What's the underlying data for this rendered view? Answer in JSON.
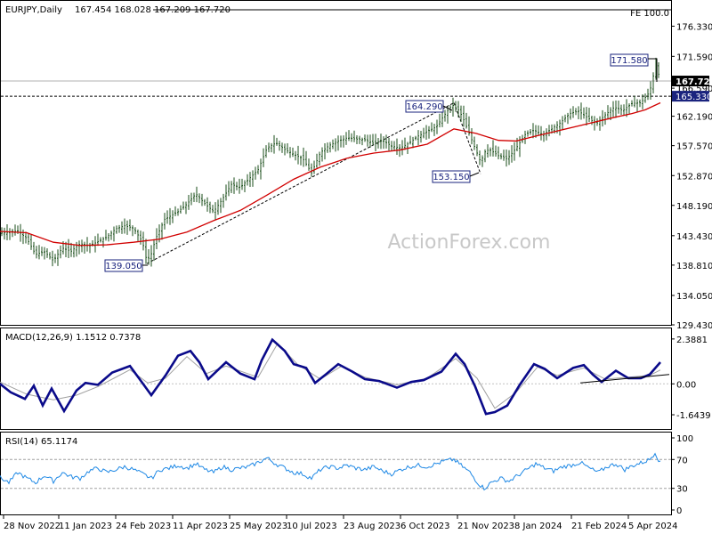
{
  "chart_data": [
    {
      "type": "candlestick",
      "title": "EURJPY,Daily",
      "ohlc": "167.454 168.028 167.209 167.720",
      "ylim": [
        129.43,
        180.3
      ],
      "y_ticks": [
        "176.330",
        "171.590",
        "167.720",
        "166.590",
        "165.330",
        "162.190",
        "157.570",
        "152.870",
        "148.190",
        "143.430",
        "138.810",
        "134.050",
        "129.430"
      ],
      "last_price": 167.72,
      "last_price_label": "167.720",
      "hline_label": "165.330",
      "hline_value": 165.33,
      "fe_label": "FE 100.0",
      "fe_value": 178.9,
      "annotations": [
        {
          "text": "171.580",
          "value": 171.58
        },
        {
          "text": "164.290",
          "value": 164.29
        },
        {
          "text": "153.150",
          "value": 153.15
        },
        {
          "text": "139.050",
          "value": 139.05
        }
      ],
      "x_labels": [
        "28 Nov 2022",
        "11 Jan 2023",
        "24 Feb 2023",
        "11 Apr 2023",
        "25 May 2023",
        "10 Jul 2023",
        "23 Aug 2023",
        "6 Oct 2023",
        "21 Nov 2023",
        "8 Jan 2024",
        "21 Feb 2024",
        "5 Apr 2024"
      ],
      "watermark": "ActionForex.com",
      "close_path": [
        [
          0,
          143.8
        ],
        [
          20,
          144.2
        ],
        [
          30,
          143.0
        ],
        [
          40,
          140.5
        ],
        [
          50,
          140.9
        ],
        [
          60,
          139.5
        ],
        [
          70,
          141.5
        ],
        [
          80,
          141.0
        ],
        [
          90,
          142.2
        ],
        [
          100,
          141.8
        ],
        [
          110,
          142.5
        ],
        [
          120,
          143.2
        ],
        [
          130,
          144.5
        ],
        [
          140,
          145.0
        ],
        [
          150,
          144.6
        ],
        [
          160,
          142.5
        ],
        [
          165,
          139.4
        ],
        [
          170,
          140.6
        ],
        [
          175,
          143.0
        ],
        [
          185,
          146.0
        ],
        [
          200,
          147.2
        ],
        [
          210,
          148.4
        ],
        [
          220,
          150.0
        ],
        [
          230,
          148.5
        ],
        [
          240,
          147.2
        ],
        [
          250,
          149.2
        ],
        [
          260,
          151.5
        ],
        [
          270,
          151.0
        ],
        [
          280,
          152.4
        ],
        [
          290,
          153.8
        ],
        [
          300,
          157.2
        ],
        [
          310,
          158.0
        ],
        [
          320,
          157.0
        ],
        [
          330,
          156.2
        ],
        [
          340,
          155.6
        ],
        [
          350,
          153.3
        ],
        [
          360,
          156.5
        ],
        [
          370,
          157.6
        ],
        [
          380,
          158.3
        ],
        [
          390,
          158.8
        ],
        [
          400,
          158.6
        ],
        [
          410,
          158.5
        ],
        [
          420,
          157.9
        ],
        [
          430,
          158.4
        ],
        [
          440,
          157.5
        ],
        [
          450,
          157.2
        ],
        [
          460,
          158.0
        ],
        [
          470,
          159.1
        ],
        [
          480,
          159.8
        ],
        [
          490,
          160.5
        ],
        [
          500,
          162.5
        ],
        [
          508,
          164.0
        ],
        [
          515,
          163.2
        ],
        [
          520,
          162.0
        ],
        [
          530,
          158.5
        ],
        [
          540,
          155.0
        ],
        [
          545,
          156.6
        ],
        [
          550,
          157.0
        ],
        [
          560,
          156.0
        ],
        [
          570,
          155.5
        ],
        [
          580,
          157.2
        ],
        [
          590,
          159.3
        ],
        [
          600,
          160.0
        ],
        [
          610,
          159.3
        ],
        [
          620,
          160.2
        ],
        [
          630,
          161.2
        ],
        [
          640,
          162.6
        ],
        [
          650,
          163.0
        ],
        [
          660,
          162.0
        ],
        [
          670,
          161.0
        ],
        [
          680,
          162.4
        ],
        [
          690,
          163.6
        ],
        [
          700,
          163.1
        ],
        [
          710,
          164.2
        ],
        [
          720,
          164.3
        ],
        [
          730,
          166.0
        ],
        [
          737,
          170.4
        ],
        [
          742,
          167.7
        ]
      ],
      "ma_path": [
        [
          0,
          144.1
        ],
        [
          30,
          143.9
        ],
        [
          60,
          142.4
        ],
        [
          90,
          141.9
        ],
        [
          120,
          142.0
        ],
        [
          150,
          142.4
        ],
        [
          180,
          142.9
        ],
        [
          210,
          144.0
        ],
        [
          240,
          145.8
        ],
        [
          270,
          147.4
        ],
        [
          300,
          149.8
        ],
        [
          330,
          152.3
        ],
        [
          360,
          154.2
        ],
        [
          390,
          155.6
        ],
        [
          420,
          156.4
        ],
        [
          450,
          156.9
        ],
        [
          480,
          157.8
        ],
        [
          510,
          160.2
        ],
        [
          535,
          159.5
        ],
        [
          560,
          158.4
        ],
        [
          580,
          158.3
        ],
        [
          600,
          159.0
        ],
        [
          630,
          160.0
        ],
        [
          660,
          161.0
        ],
        [
          690,
          162.0
        ],
        [
          710,
          162.6
        ],
        [
          725,
          163.2
        ],
        [
          742,
          164.3
        ]
      ],
      "trendlines": [
        {
          "from": [
            165,
            139.05
          ],
          "to": [
            510,
            164.29
          ],
          "style": "dashed"
        },
        {
          "from": [
            510,
            164.29
          ],
          "to": [
            540,
            153.15
          ],
          "style": "dashed"
        }
      ]
    },
    {
      "type": "line",
      "title": "MACD(12,26,9) 1.1512 0.7378",
      "ylim": [
        -2.4,
        2.95
      ],
      "y_ticks": [
        "2.3881",
        "0.00",
        "-1.6439"
      ],
      "zero_label": "0.00",
      "macd_path": [
        [
          0,
          0.0
        ],
        [
          12,
          -0.45
        ],
        [
          28,
          -0.8
        ],
        [
          38,
          -0.1
        ],
        [
          48,
          -1.15
        ],
        [
          58,
          -0.25
        ],
        [
          72,
          -1.45
        ],
        [
          86,
          -0.35
        ],
        [
          96,
          0.05
        ],
        [
          110,
          -0.05
        ],
        [
          126,
          0.6
        ],
        [
          146,
          0.95
        ],
        [
          160,
          0.05
        ],
        [
          170,
          -0.6
        ],
        [
          186,
          0.45
        ],
        [
          200,
          1.5
        ],
        [
          214,
          1.75
        ],
        [
          224,
          1.15
        ],
        [
          234,
          0.25
        ],
        [
          254,
          1.15
        ],
        [
          270,
          0.55
        ],
        [
          286,
          0.25
        ],
        [
          294,
          1.25
        ],
        [
          306,
          2.35
        ],
        [
          320,
          1.75
        ],
        [
          330,
          1.05
        ],
        [
          344,
          0.85
        ],
        [
          354,
          0.05
        ],
        [
          366,
          0.5
        ],
        [
          380,
          1.05
        ],
        [
          396,
          0.65
        ],
        [
          410,
          0.25
        ],
        [
          426,
          0.15
        ],
        [
          446,
          -0.2
        ],
        [
          462,
          0.1
        ],
        [
          476,
          0.2
        ],
        [
          496,
          0.65
        ],
        [
          512,
          1.6
        ],
        [
          522,
          1.05
        ],
        [
          534,
          -0.15
        ],
        [
          546,
          -1.6
        ],
        [
          556,
          -1.5
        ],
        [
          570,
          -1.15
        ],
        [
          584,
          -0.05
        ],
        [
          600,
          1.05
        ],
        [
          612,
          0.8
        ],
        [
          626,
          0.3
        ],
        [
          644,
          0.85
        ],
        [
          656,
          1.0
        ],
        [
          666,
          0.5
        ],
        [
          676,
          0.1
        ],
        [
          692,
          0.7
        ],
        [
          706,
          0.3
        ],
        [
          720,
          0.3
        ],
        [
          730,
          0.5
        ],
        [
          742,
          1.15
        ]
      ],
      "signal_path": [
        [
          0,
          0.1
        ],
        [
          30,
          -0.55
        ],
        [
          60,
          -0.85
        ],
        [
          86,
          -0.6
        ],
        [
          110,
          -0.15
        ],
        [
          146,
          0.75
        ],
        [
          166,
          0.05
        ],
        [
          186,
          0.3
        ],
        [
          210,
          1.45
        ],
        [
          232,
          0.55
        ],
        [
          254,
          0.95
        ],
        [
          290,
          0.35
        ],
        [
          312,
          2.15
        ],
        [
          334,
          1.05
        ],
        [
          360,
          0.25
        ],
        [
          384,
          0.95
        ],
        [
          410,
          0.35
        ],
        [
          446,
          -0.05
        ],
        [
          480,
          0.3
        ],
        [
          512,
          1.35
        ],
        [
          536,
          0.3
        ],
        [
          556,
          -1.3
        ],
        [
          580,
          -0.45
        ],
        [
          604,
          0.9
        ],
        [
          626,
          0.45
        ],
        [
          656,
          0.85
        ],
        [
          680,
          0.25
        ],
        [
          706,
          0.35
        ],
        [
          730,
          0.45
        ],
        [
          742,
          0.74
        ]
      ],
      "trendline": {
        "from": [
          652,
          0.05
        ],
        "to": [
          752,
          0.5
        ]
      }
    },
    {
      "type": "line",
      "title": "RSI(14) 65.1174",
      "ylim": [
        0,
        100
      ],
      "y_ticks": [
        "100",
        "70",
        "30",
        "0"
      ],
      "levels": [
        70,
        30
      ],
      "rsi_path": [
        [
          0,
          45
        ],
        [
          10,
          38
        ],
        [
          20,
          52
        ],
        [
          30,
          44
        ],
        [
          40,
          38
        ],
        [
          50,
          48
        ],
        [
          60,
          40
        ],
        [
          70,
          52
        ],
        [
          80,
          46
        ],
        [
          90,
          44
        ],
        [
          100,
          54
        ],
        [
          110,
          58
        ],
        [
          120,
          52
        ],
        [
          130,
          56
        ],
        [
          140,
          60
        ],
        [
          150,
          56
        ],
        [
          160,
          50
        ],
        [
          170,
          44
        ],
        [
          180,
          56
        ],
        [
          190,
          58
        ],
        [
          200,
          62
        ],
        [
          210,
          58
        ],
        [
          220,
          64
        ],
        [
          230,
          56
        ],
        [
          240,
          52
        ],
        [
          250,
          60
        ],
        [
          260,
          56
        ],
        [
          270,
          58
        ],
        [
          280,
          60
        ],
        [
          290,
          66
        ],
        [
          300,
          72
        ],
        [
          310,
          64
        ],
        [
          320,
          58
        ],
        [
          330,
          52
        ],
        [
          340,
          50
        ],
        [
          350,
          44
        ],
        [
          360,
          56
        ],
        [
          370,
          60
        ],
        [
          380,
          58
        ],
        [
          390,
          62
        ],
        [
          400,
          58
        ],
        [
          410,
          56
        ],
        [
          420,
          60
        ],
        [
          430,
          54
        ],
        [
          440,
          50
        ],
        [
          450,
          56
        ],
        [
          460,
          60
        ],
        [
          470,
          62
        ],
        [
          480,
          60
        ],
        [
          490,
          64
        ],
        [
          500,
          68
        ],
        [
          510,
          70
        ],
        [
          518,
          62
        ],
        [
          528,
          52
        ],
        [
          538,
          36
        ],
        [
          544,
          30
        ],
        [
          552,
          38
        ],
        [
          562,
          44
        ],
        [
          572,
          40
        ],
        [
          582,
          48
        ],
        [
          592,
          56
        ],
        [
          602,
          64
        ],
        [
          612,
          58
        ],
        [
          622,
          54
        ],
        [
          632,
          60
        ],
        [
          642,
          62
        ],
        [
          652,
          66
        ],
        [
          662,
          58
        ],
        [
          672,
          52
        ],
        [
          682,
          60
        ],
        [
          692,
          64
        ],
        [
          702,
          56
        ],
        [
          712,
          62
        ],
        [
          722,
          66
        ],
        [
          730,
          70
        ],
        [
          736,
          80
        ],
        [
          742,
          65
        ]
      ]
    }
  ]
}
